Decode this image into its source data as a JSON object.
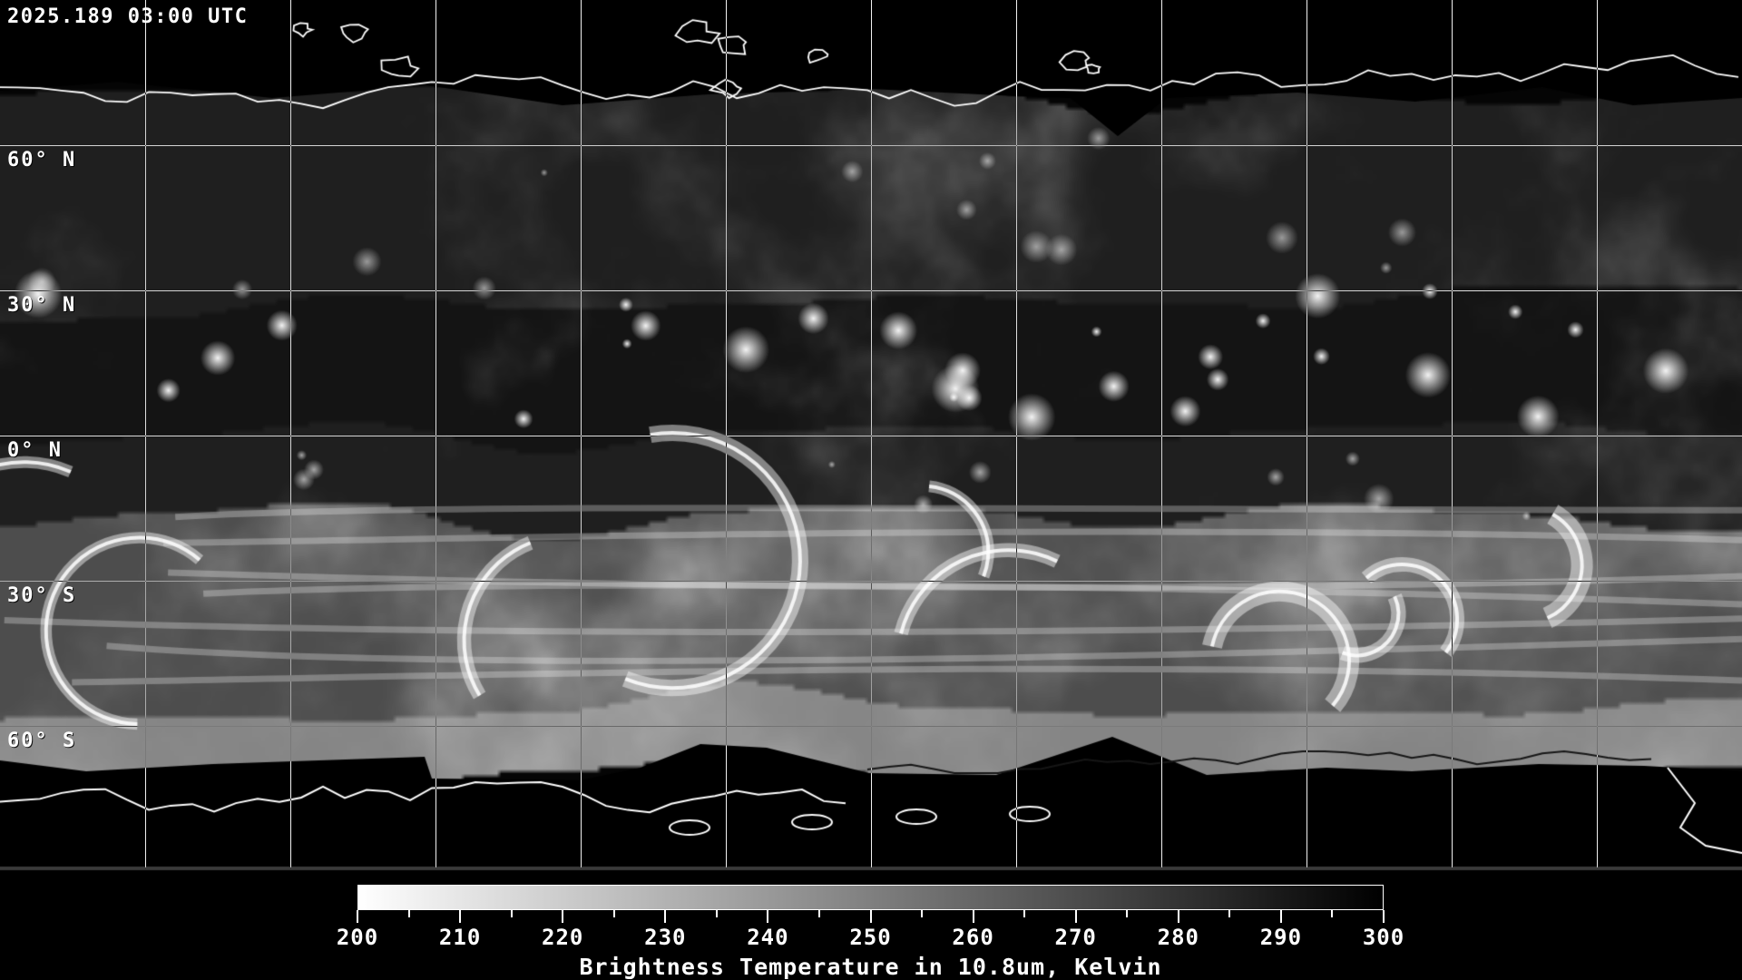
{
  "timestamp": "2025.189 03:00 UTC",
  "map": {
    "latitude_labels": [
      {
        "text": "60° N",
        "lat": 60
      },
      {
        "text": "30° N",
        "lat": 30
      },
      {
        "text": "0° N",
        "lat": 0
      },
      {
        "text": "30° S",
        "lat": -30
      },
      {
        "text": "60° S",
        "lat": -60
      }
    ],
    "grid": {
      "lon_step_deg": 30,
      "lat_lines_deg": [
        60,
        30,
        0,
        -30,
        -60
      ]
    }
  },
  "colorbar": {
    "title": "Brightness Temperature in 10.8um, Kelvin",
    "min": 200,
    "max": 300,
    "minor_tick_step": 5,
    "major_ticks": [
      "200",
      "210",
      "220",
      "230",
      "240",
      "250",
      "260",
      "270",
      "280",
      "290",
      "300"
    ],
    "gradient_start": "#ffffff",
    "gradient_end": "#000000"
  },
  "chart_data": {
    "type": "heatmap",
    "title": "Brightness Temperature in 10.8um, Kelvin",
    "timestamp": "2025.189 03:00 UTC",
    "colorbar_min": 200,
    "colorbar_max": 300,
    "colorbar_ticks": [
      200,
      210,
      220,
      230,
      240,
      250,
      260,
      270,
      280,
      290,
      300
    ],
    "colormap": "grayscale (white = 200 K cold cloud tops, black = 300 K warm surface)",
    "grid_lat_lines_deg": [
      60,
      30,
      0,
      -30,
      -60
    ],
    "grid_lon_spacing_deg": 30
  }
}
